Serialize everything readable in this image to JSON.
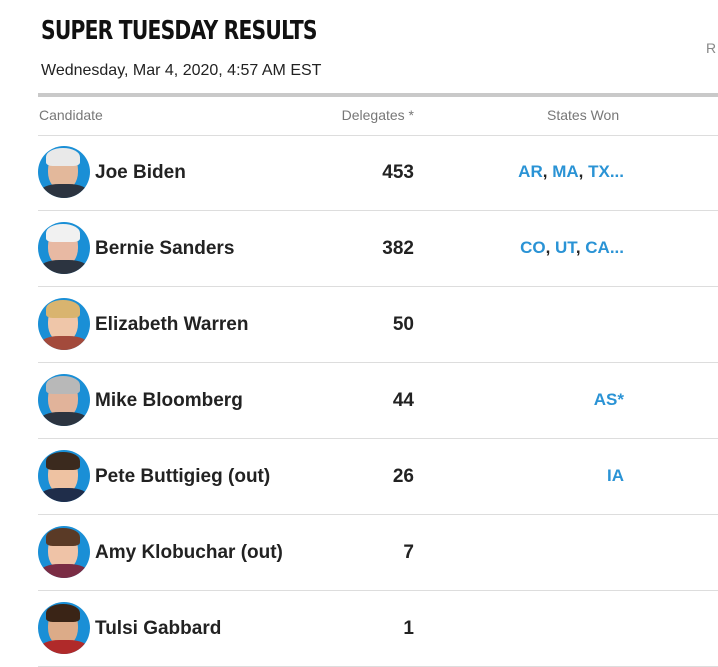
{
  "page": {
    "title": "SUPER TUESDAY RESULTS",
    "timestamp": "Wednesday, Mar 4, 2020, 4:57 AM EST",
    "corner_text": "R"
  },
  "table": {
    "headers": {
      "candidate": "Candidate",
      "delegates": "Delegates *",
      "states_won": "States Won"
    },
    "rows": [
      {
        "name": "Joe Biden",
        "delegates": "453",
        "states": [
          "AR",
          "MA",
          "TX"
        ],
        "truncated": true,
        "avatar": "joe-biden-avatar"
      },
      {
        "name": "Bernie Sanders",
        "delegates": "382",
        "states": [
          "CO",
          "UT",
          "CA"
        ],
        "truncated": true,
        "avatar": "bernie-sanders-avatar"
      },
      {
        "name": "Elizabeth Warren",
        "delegates": "50",
        "states": [],
        "truncated": false,
        "avatar": "elizabeth-warren-avatar"
      },
      {
        "name": "Mike Bloomberg",
        "delegates": "44",
        "states": [
          "AS*"
        ],
        "truncated": false,
        "avatar": "mike-bloomberg-avatar"
      },
      {
        "name": "Pete Buttigieg (out)",
        "delegates": "26",
        "states": [
          "IA"
        ],
        "truncated": false,
        "avatar": "pete-buttigieg-avatar"
      },
      {
        "name": "Amy Klobuchar (out)",
        "delegates": "7",
        "states": [],
        "truncated": false,
        "avatar": "amy-klobuchar-avatar"
      },
      {
        "name": "Tulsi Gabbard",
        "delegates": "1",
        "states": [],
        "truncated": false,
        "avatar": "tulsi-gabbard-avatar"
      }
    ]
  },
  "colors": {
    "accent_blue": "#2a93d5",
    "avatar_bg": "#1a8fd6",
    "divider": "#dddddd",
    "header_text": "#777777"
  }
}
